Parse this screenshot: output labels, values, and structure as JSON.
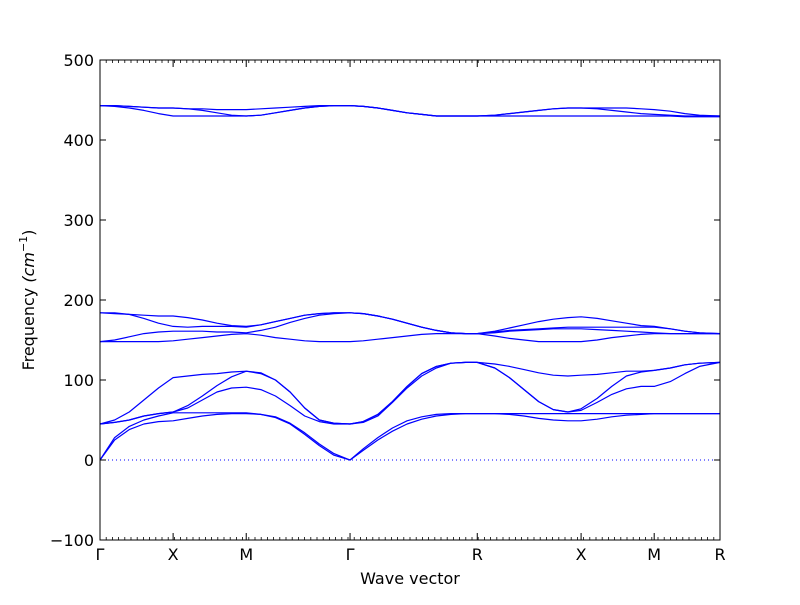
{
  "chart_data": {
    "type": "line",
    "xlabel": "Wave vector",
    "ylabel_text": "Frequency ",
    "ylabel_unit": "(cm",
    "ylabel_sup": "−1",
    "ylabel_close": ")",
    "ylim": [
      -100,
      500
    ],
    "yticks": [
      -100,
      0,
      100,
      200,
      300,
      400,
      500
    ],
    "xlim": [
      0,
      4.24
    ],
    "x_ticks": [
      {
        "label": "Γ",
        "pos": 0.0
      },
      {
        "label": "X",
        "pos": 0.5
      },
      {
        "label": "M",
        "pos": 1.0
      },
      {
        "label": "Γ",
        "pos": 1.71
      },
      {
        "label": "R",
        "pos": 2.58
      },
      {
        "label": "X",
        "pos": 3.29
      },
      {
        "label": "M",
        "pos": 3.79
      },
      {
        "label": "R",
        "pos": 4.24
      }
    ],
    "zero_line": true,
    "line_color": "#0000ff",
    "series_x": [
      0,
      0.1,
      0.2,
      0.3,
      0.4,
      0.5,
      0.6,
      0.7,
      0.8,
      0.9,
      1.0,
      1.1,
      1.2,
      1.3,
      1.4,
      1.5,
      1.6,
      1.71,
      1.8,
      1.9,
      2.0,
      2.1,
      2.2,
      2.3,
      2.4,
      2.5,
      2.58,
      2.7,
      2.8,
      2.9,
      3.0,
      3.1,
      3.2,
      3.29,
      3.4,
      3.5,
      3.6,
      3.7,
      3.79,
      3.9,
      4.0,
      4.1,
      4.24
    ],
    "series": [
      {
        "values": [
          0,
          25,
          38,
          45,
          48,
          49,
          52,
          55,
          57,
          58,
          58,
          57,
          54,
          46,
          34,
          20,
          8,
          0,
          12,
          25,
          36,
          45,
          51,
          55,
          57,
          58,
          58,
          58,
          57,
          55,
          52,
          50,
          49,
          49,
          51,
          54,
          56,
          57,
          58,
          58,
          58,
          58,
          58
        ]
      },
      {
        "values": [
          0,
          28,
          42,
          50,
          55,
          59,
          59,
          59,
          59,
          59,
          59,
          57,
          53,
          45,
          32,
          18,
          6,
          0,
          14,
          28,
          40,
          49,
          54,
          57,
          58,
          58,
          58,
          58,
          58,
          58,
          58,
          58,
          58,
          58,
          58,
          58,
          58,
          58,
          58,
          58,
          58,
          58,
          58
        ]
      },
      {
        "values": [
          45,
          47,
          50,
          55,
          58,
          60,
          65,
          75,
          85,
          90,
          91,
          88,
          80,
          68,
          55,
          48,
          45,
          45,
          47,
          55,
          72,
          90,
          105,
          115,
          121,
          122,
          122,
          115,
          103,
          88,
          73,
          63,
          60,
          62,
          72,
          82,
          89,
          92,
          92,
          98,
          108,
          117,
          122
        ]
      },
      {
        "values": [
          45,
          50,
          60,
          75,
          90,
          103,
          105,
          107,
          108,
          110,
          111,
          108,
          100,
          85,
          65,
          50,
          46,
          45,
          48,
          57,
          73,
          92,
          108,
          117,
          121,
          122,
          122,
          120,
          117,
          113,
          109,
          106,
          105,
          106,
          107,
          109,
          111,
          111,
          112,
          115,
          119,
          121,
          122
        ]
      },
      {
        "values": [
          45,
          47,
          50,
          55,
          58,
          60,
          68,
          80,
          93,
          104,
          111,
          109,
          100,
          85,
          65,
          50,
          46,
          45,
          48,
          57,
          73,
          92,
          108,
          117,
          121,
          122,
          122,
          115,
          103,
          88,
          73,
          63,
          60,
          64,
          77,
          92,
          105,
          110,
          112,
          115,
          119,
          121,
          122
        ]
      },
      {
        "values": [
          148,
          148,
          148,
          148,
          148,
          149,
          151,
          153,
          155,
          157,
          158,
          156,
          153,
          151,
          149,
          148,
          148,
          148,
          149,
          151,
          153,
          155,
          157,
          158,
          158,
          158,
          158,
          155,
          152,
          150,
          148,
          148,
          148,
          148,
          150,
          153,
          155,
          157,
          158,
          158,
          158,
          158,
          158
        ]
      },
      {
        "values": [
          148,
          150,
          154,
          158,
          160,
          161,
          161,
          161,
          160,
          160,
          159,
          162,
          166,
          172,
          177,
          181,
          183,
          184,
          183,
          180,
          176,
          171,
          166,
          162,
          159,
          158,
          158,
          161,
          165,
          169,
          173,
          176,
          178,
          179,
          177,
          174,
          171,
          168,
          167,
          164,
          161,
          159,
          158
        ]
      },
      {
        "values": [
          184,
          184,
          182,
          177,
          171,
          167,
          166,
          167,
          167,
          167,
          166,
          169,
          173,
          177,
          181,
          183,
          184,
          184,
          183,
          180,
          176,
          171,
          166,
          162,
          159,
          158,
          158,
          159,
          161,
          162,
          163,
          164,
          164,
          164,
          163,
          162,
          161,
          160,
          159,
          158,
          158,
          158,
          158
        ]
      },
      {
        "values": [
          184,
          183,
          182,
          181,
          180,
          180,
          178,
          175,
          171,
          168,
          167,
          169,
          173,
          177,
          181,
          183,
          184,
          184,
          183,
          180,
          176,
          171,
          166,
          162,
          159,
          158,
          158,
          160,
          162,
          163,
          164,
          165,
          166,
          166,
          166,
          166,
          166,
          166,
          166,
          164,
          161,
          159,
          158
        ]
      },
      {
        "values": [
          443,
          443,
          442,
          441,
          440,
          440,
          439,
          437,
          434,
          431,
          430,
          431,
          434,
          437,
          440,
          442,
          443,
          443,
          442,
          440,
          437,
          434,
          432,
          430,
          430,
          430,
          430,
          431,
          433,
          435,
          437,
          439,
          440,
          440,
          439,
          437,
          435,
          433,
          432,
          431,
          430,
          430,
          430
        ]
      },
      {
        "values": [
          443,
          442,
          440,
          437,
          433,
          430,
          430,
          430,
          430,
          430,
          430,
          431,
          434,
          437,
          440,
          442,
          443,
          443,
          442,
          440,
          437,
          434,
          432,
          430,
          430,
          430,
          430,
          430,
          430,
          430,
          430,
          430,
          430,
          430,
          430,
          430,
          430,
          430,
          430,
          430,
          429,
          429,
          429
        ]
      },
      {
        "values": [
          443,
          443,
          442,
          441,
          440,
          440,
          439,
          439,
          438,
          438,
          438,
          439,
          440,
          441,
          442,
          443,
          443,
          443,
          442,
          440,
          437,
          434,
          432,
          430,
          430,
          430,
          430,
          431,
          433,
          435,
          437,
          439,
          440,
          440,
          440,
          440,
          440,
          439,
          438,
          436,
          433,
          431,
          430
        ]
      }
    ]
  }
}
